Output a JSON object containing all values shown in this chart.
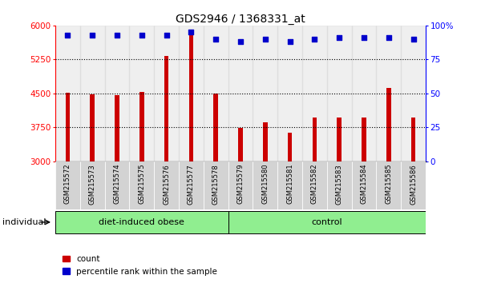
{
  "title": "GDS2946 / 1368331_at",
  "samples": [
    "GSM215572",
    "GSM215573",
    "GSM215574",
    "GSM215575",
    "GSM215576",
    "GSM215577",
    "GSM215578",
    "GSM215579",
    "GSM215580",
    "GSM215581",
    "GSM215582",
    "GSM215583",
    "GSM215584",
    "GSM215585",
    "GSM215586"
  ],
  "counts": [
    4520,
    4480,
    4460,
    4530,
    5320,
    5800,
    4500,
    3730,
    3860,
    3640,
    3960,
    3970,
    3970,
    4620,
    3960
  ],
  "percentiles": [
    93,
    93,
    93,
    93,
    93,
    95,
    90,
    88,
    90,
    88,
    90,
    91,
    91,
    91,
    90
  ],
  "groups": [
    "diet-induced obese",
    "diet-induced obese",
    "diet-induced obese",
    "diet-induced obese",
    "diet-induced obese",
    "diet-induced obese",
    "diet-induced obese",
    "control",
    "control",
    "control",
    "control",
    "control",
    "control",
    "control",
    "control"
  ],
  "bar_color": "#cc0000",
  "dot_color": "#0000cc",
  "ymin": 3000,
  "ymax": 6000,
  "yticks": [
    3000,
    3750,
    4500,
    5250,
    6000
  ],
  "ytick_labels": [
    "3000",
    "3750",
    "4500",
    "5250",
    "6000"
  ],
  "y2min": 0,
  "y2max": 100,
  "y2ticks": [
    0,
    25,
    50,
    75,
    100
  ],
  "y2tick_labels": [
    "0",
    "25",
    "50",
    "75",
    "100%"
  ],
  "dotted_lines": [
    3750,
    4500,
    5250
  ],
  "cell_bg": "#d3d3d3",
  "group_color": "#90ee90",
  "plot_bg": "#ffffff"
}
